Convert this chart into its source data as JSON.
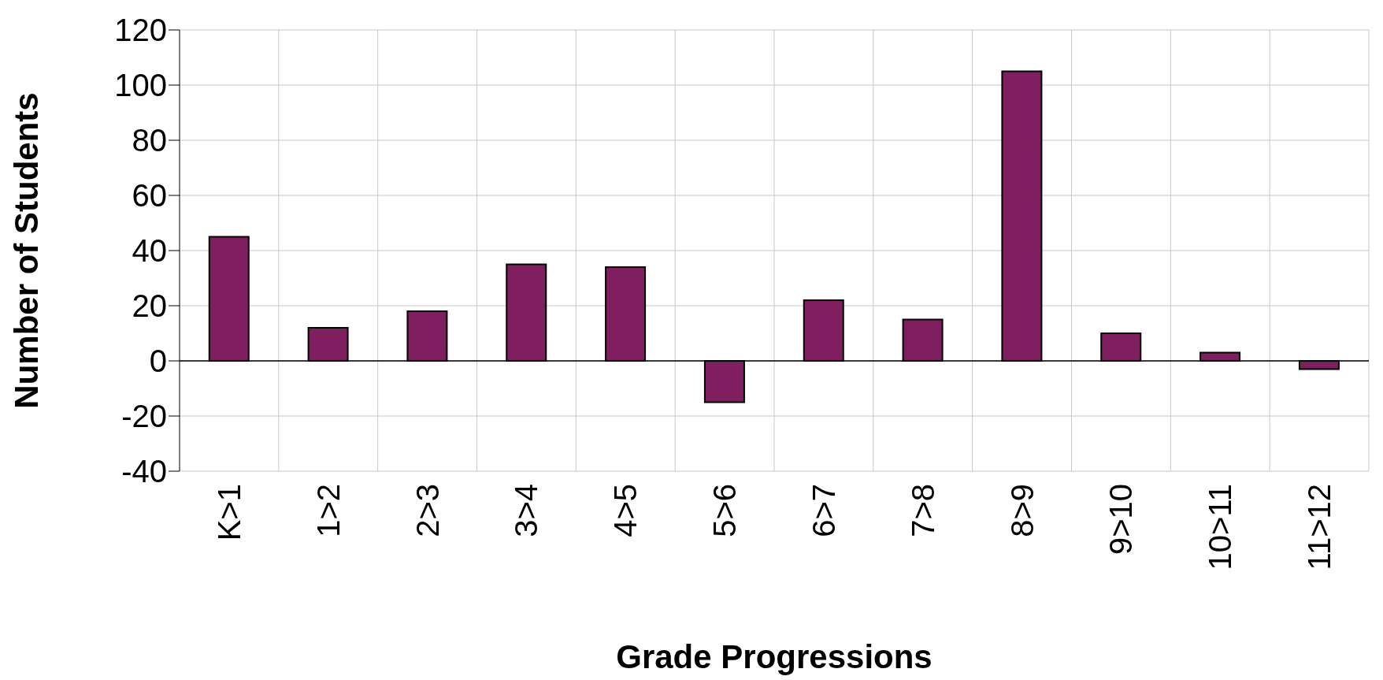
{
  "chart_data": {
    "type": "bar",
    "xlabel": "Grade Progressions",
    "ylabel": "Number of Students",
    "categories": [
      "K>1",
      "1>2",
      "2>3",
      "3>4",
      "4>5",
      "5>6",
      "6>7",
      "7>8",
      "8>9",
      "9>10",
      "10>11",
      "11>12"
    ],
    "values": [
      45,
      12,
      18,
      35,
      34,
      -15,
      22,
      15,
      105,
      10,
      3,
      -3
    ],
    "color": "#7f1f5f",
    "ylim": [
      -40,
      120
    ],
    "yticks": [
      -40,
      -20,
      0,
      20,
      40,
      60,
      80,
      100,
      120
    ],
    "grid": true,
    "legend": false
  }
}
